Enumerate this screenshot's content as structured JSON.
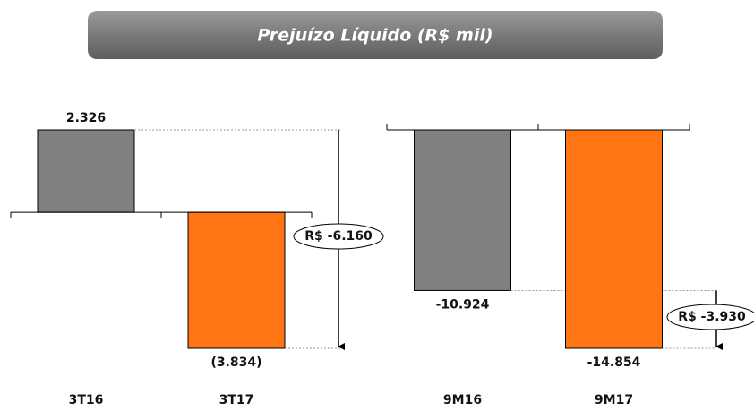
{
  "title": "Prejuízo Líquido (R$ mil)",
  "chart_data": [
    {
      "type": "bar",
      "categories": [
        "3T16",
        "3T17"
      ],
      "values": [
        2326,
        -3834
      ],
      "value_labels": [
        "2.326",
        "(3.834)"
      ],
      "colors": [
        "#808080",
        "#ff7413"
      ],
      "annotation": "R$ -6.160"
    },
    {
      "type": "bar",
      "categories": [
        "9M16",
        "9M17"
      ],
      "values": [
        -10924,
        -14854
      ],
      "value_labels": [
        "-10.924",
        "-14.854"
      ],
      "colors": [
        "#808080",
        "#ff7413"
      ],
      "annotation": "R$ -3.930"
    }
  ]
}
